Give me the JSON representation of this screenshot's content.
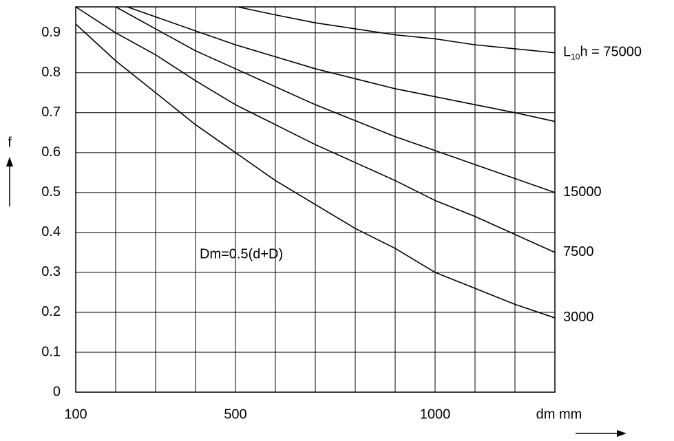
{
  "chart_data": {
    "type": "line",
    "annotation": "Dm=0.5(d+D)",
    "ylabel": "f",
    "xlabel": "dm mm",
    "xlim": [
      100,
      1300
    ],
    "xticks": [
      100,
      500,
      1000
    ],
    "x_gridlines": [
      200,
      300,
      400,
      600,
      700,
      800,
      900,
      1100,
      1200,
      1300
    ],
    "ylim": [
      0,
      0.965
    ],
    "yticks": [
      0,
      0.1,
      0.2,
      0.3,
      0.4,
      0.5,
      0.6,
      0.7,
      0.8,
      0.9
    ],
    "grid": true,
    "color": "#000000",
    "series": [
      {
        "name": [
          "L",
          "10",
          "h = 75000"
        ],
        "x": [
          505,
          600,
          700,
          800,
          900,
          1000,
          1100,
          1200,
          1300
        ],
        "values": [
          0.965,
          0.945,
          0.925,
          0.91,
          0.895,
          0.885,
          0.87,
          0.86,
          0.85
        ]
      },
      {
        "x": [
          229,
          300,
          400,
          500,
          600,
          700,
          800,
          900,
          1000,
          1100,
          1200,
          1300
        ],
        "values": [
          0.965,
          0.94,
          0.905,
          0.87,
          0.84,
          0.81,
          0.785,
          0.76,
          0.74,
          0.72,
          0.7,
          0.678
        ]
      },
      {
        "name": [
          "15000"
        ],
        "x": [
          200,
          300,
          400,
          500,
          600,
          700,
          800,
          900,
          1000,
          1100,
          1200,
          1300
        ],
        "values": [
          0.965,
          0.91,
          0.855,
          0.81,
          0.765,
          0.72,
          0.68,
          0.64,
          0.605,
          0.57,
          0.535,
          0.5
        ]
      },
      {
        "name": [
          "7500"
        ],
        "x": [
          100,
          200,
          300,
          400,
          500,
          600,
          700,
          800,
          900,
          1000,
          1100,
          1200,
          1300
        ],
        "values": [
          0.965,
          0.9,
          0.845,
          0.78,
          0.72,
          0.67,
          0.62,
          0.575,
          0.53,
          0.48,
          0.44,
          0.395,
          0.35
        ]
      },
      {
        "name": [
          "3000"
        ],
        "x": [
          100,
          200,
          300,
          400,
          500,
          600,
          700,
          800,
          900,
          1000,
          1100,
          1200,
          1300
        ],
        "values": [
          0.922,
          0.83,
          0.75,
          0.67,
          0.6,
          0.53,
          0.47,
          0.41,
          0.36,
          0.3,
          0.26,
          0.22,
          0.186
        ]
      }
    ]
  }
}
